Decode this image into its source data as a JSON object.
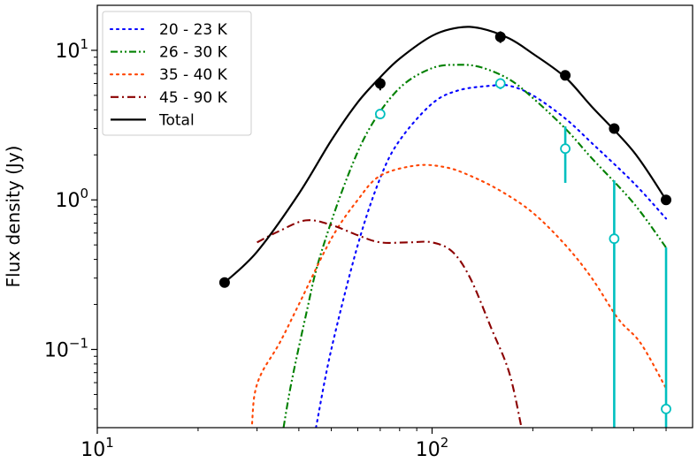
{
  "chart_data": {
    "type": "line",
    "title": "",
    "xlabel": "",
    "ylabel": "Flux density (Jy)",
    "xscale": "log",
    "yscale": "log",
    "xlim": [
      10,
      600
    ],
    "ylim": [
      0.03,
      20
    ],
    "grid": false,
    "legend_position": "top-left",
    "x_ticks": [
      {
        "value": 10,
        "base": "10",
        "exp": "1"
      },
      {
        "value": 100,
        "base": "10",
        "exp": "2"
      }
    ],
    "y_ticks": [
      {
        "value": 0.1,
        "base": "10",
        "exp": "−1"
      },
      {
        "value": 1,
        "base": "10",
        "exp": "0"
      },
      {
        "value": 10,
        "base": "10",
        "exp": "1"
      }
    ],
    "series": [
      {
        "name": "20 - 23 K",
        "color": "#0000ff",
        "style": "dotted",
        "x": [
          45,
          50,
          60,
          70,
          80,
          100,
          120,
          150,
          170,
          200,
          250,
          300,
          400,
          500
        ],
        "y": [
          0.03,
          0.1,
          0.5,
          1.4,
          2.5,
          4.4,
          5.4,
          5.8,
          5.8,
          5.0,
          3.5,
          2.4,
          1.3,
          0.75
        ]
      },
      {
        "name": "26 - 30 K",
        "color": "#008000",
        "style": "dashdotdot",
        "x": [
          36,
          38,
          42,
          46,
          55,
          65,
          80,
          100,
          120,
          140,
          170,
          200,
          250,
          300,
          400,
          500
        ],
        "y": [
          0.03,
          0.06,
          0.17,
          0.4,
          1.3,
          3.0,
          5.6,
          7.6,
          8.0,
          7.7,
          6.4,
          4.8,
          3.0,
          1.9,
          0.95,
          0.48
        ]
      },
      {
        "name": "35 - 40 K",
        "color": "#ff4500",
        "style": "dotted",
        "x": [
          29,
          29.5,
          31,
          35,
          40,
          50,
          60,
          70,
          90,
          110,
          130,
          160,
          200,
          250,
          300,
          360,
          420,
          500
        ],
        "y": [
          0.032,
          0.05,
          0.07,
          0.11,
          0.2,
          0.55,
          1.0,
          1.45,
          1.7,
          1.65,
          1.45,
          1.15,
          0.82,
          0.5,
          0.3,
          0.16,
          0.11,
          0.055
        ]
      },
      {
        "name": "45 - 90 K",
        "color": "#8b0000",
        "style": "dashdot",
        "x": [
          30,
          35,
          42,
          50,
          60,
          70,
          85,
          100,
          115,
          130,
          150,
          170,
          185
        ],
        "y": [
          0.52,
          0.62,
          0.73,
          0.68,
          0.58,
          0.52,
          0.52,
          0.52,
          0.45,
          0.3,
          0.14,
          0.07,
          0.03
        ]
      },
      {
        "name": "Total",
        "color": "#000000",
        "style": "solid",
        "x": [
          24,
          30,
          40,
          50,
          60,
          70,
          80,
          100,
          120,
          140,
          170,
          200,
          250,
          300,
          400,
          500
        ],
        "y": [
          0.28,
          0.45,
          1.1,
          2.5,
          4.5,
          6.6,
          8.8,
          12.5,
          14.2,
          14.0,
          12.0,
          9.5,
          6.6,
          4.2,
          2.1,
          1.0
        ]
      }
    ],
    "observed_points": {
      "color": "#000000",
      "x": [
        24,
        70,
        160,
        250,
        350,
        500
      ],
      "y": [
        0.28,
        6.0,
        12.3,
        6.8,
        3.0,
        1.0
      ],
      "err_low": [
        0.28,
        5.4,
        11.2,
        6.4,
        2.85,
        0.95
      ],
      "err_high": [
        0.28,
        6.6,
        13.4,
        7.2,
        3.15,
        1.05
      ]
    },
    "model_points": {
      "color": "#00bfbf",
      "x": [
        70,
        160,
        250,
        350,
        500
      ],
      "y": [
        3.75,
        6.0,
        2.2,
        0.55,
        0.04
      ],
      "err_low": [
        3.6,
        5.5,
        1.3,
        0.03,
        0.03
      ],
      "err_high": [
        3.9,
        6.5,
        3.1,
        1.35,
        0.48
      ]
    }
  }
}
